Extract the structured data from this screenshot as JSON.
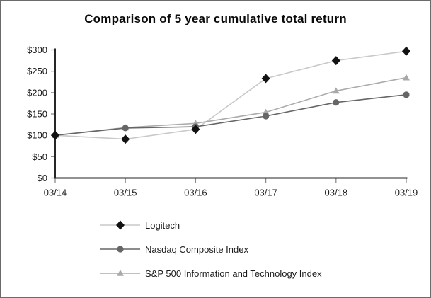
{
  "window": {
    "background": "#ffffff",
    "border_color": "#6b6b6b",
    "axis_color": "#262626",
    "tick_color": "#8c8c8c",
    "text_color": "#1a1a1a"
  },
  "chart_data": {
    "type": "line",
    "title": "Comparison of 5 year cumulative total return",
    "x": [
      "03/14",
      "03/15",
      "03/16",
      "03/17",
      "03/18",
      "03/19"
    ],
    "xlabel": "",
    "ylabel": "",
    "ylim": [
      0,
      300
    ],
    "ytick_step": 50,
    "ytick_labels": [
      "$0",
      "$50",
      "$100",
      "$150",
      "$200",
      "$250",
      "$300"
    ],
    "grid": false,
    "legend_position": "bottom-left",
    "series": [
      {
        "name": "Logitech",
        "marker": "diamond",
        "marker_color": "#121212",
        "line_color": "#c9c9c9",
        "values": [
          100,
          91,
          114,
          233,
          275,
          297
        ]
      },
      {
        "name": "Nasdaq Composite Index",
        "marker": "circle",
        "marker_color": "#666666",
        "line_color": "#666666",
        "values": [
          100,
          117,
          120,
          145,
          177,
          195
        ]
      },
      {
        "name": "S&P 500 Information and Technology Index",
        "marker": "triangle",
        "marker_color": "#a9a9a9",
        "line_color": "#ababab",
        "values": [
          100,
          118,
          128,
          154,
          204,
          235
        ]
      }
    ]
  }
}
